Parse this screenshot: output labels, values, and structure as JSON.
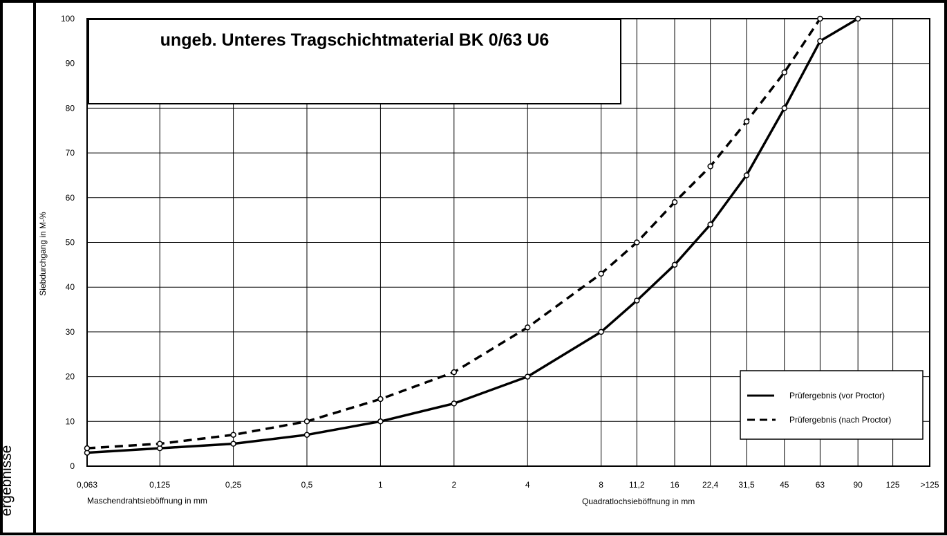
{
  "side_label": "ergebnisse",
  "chart_data": {
    "type": "line",
    "title": "ungeb. Unteres Tragschichtmaterial BK 0/63 U6",
    "ylabel": "Siebdurchgang in M-%",
    "xlabel_left": "Maschendrahtsieböffnung in mm",
    "xlabel_right": "Quadratlochsieböffnung in mm",
    "ylim": [
      0,
      100
    ],
    "yticks": [
      0,
      10,
      20,
      30,
      40,
      50,
      60,
      70,
      80,
      90,
      100
    ],
    "x_scale": "log",
    "categories": [
      "0,063",
      "0,125",
      "0,25",
      "0,5",
      "1",
      "2",
      "4",
      "8",
      "11,2",
      "16",
      "22,4",
      "31,5",
      "45",
      "63",
      "90",
      "125",
      ">125"
    ],
    "x_values": [
      0.063,
      0.125,
      0.25,
      0.5,
      1,
      2,
      4,
      8,
      11.2,
      16,
      22.4,
      31.5,
      45,
      63,
      90,
      125,
      177
    ],
    "grid": true,
    "legend_position": "bottom-right",
    "series": [
      {
        "name": "Prüfergebnis (vor Proctor)",
        "style": "solid",
        "x": [
          0.063,
          0.125,
          0.25,
          0.5,
          1,
          2,
          4,
          8,
          11.2,
          16,
          22.4,
          31.5,
          45,
          63,
          90
        ],
        "values": [
          3,
          4,
          5,
          7,
          10,
          14,
          20,
          30,
          37,
          45,
          54,
          65,
          80,
          95,
          100
        ]
      },
      {
        "name": "Prüfergebnis (nach Proctor)",
        "style": "dashed",
        "x": [
          0.063,
          0.125,
          0.25,
          0.5,
          1,
          2,
          4,
          8,
          11.2,
          16,
          22.4,
          31.5,
          45,
          63
        ],
        "values": [
          4,
          5,
          7,
          10,
          15,
          21,
          31,
          43,
          50,
          59,
          67,
          77,
          88,
          100
        ]
      }
    ]
  }
}
